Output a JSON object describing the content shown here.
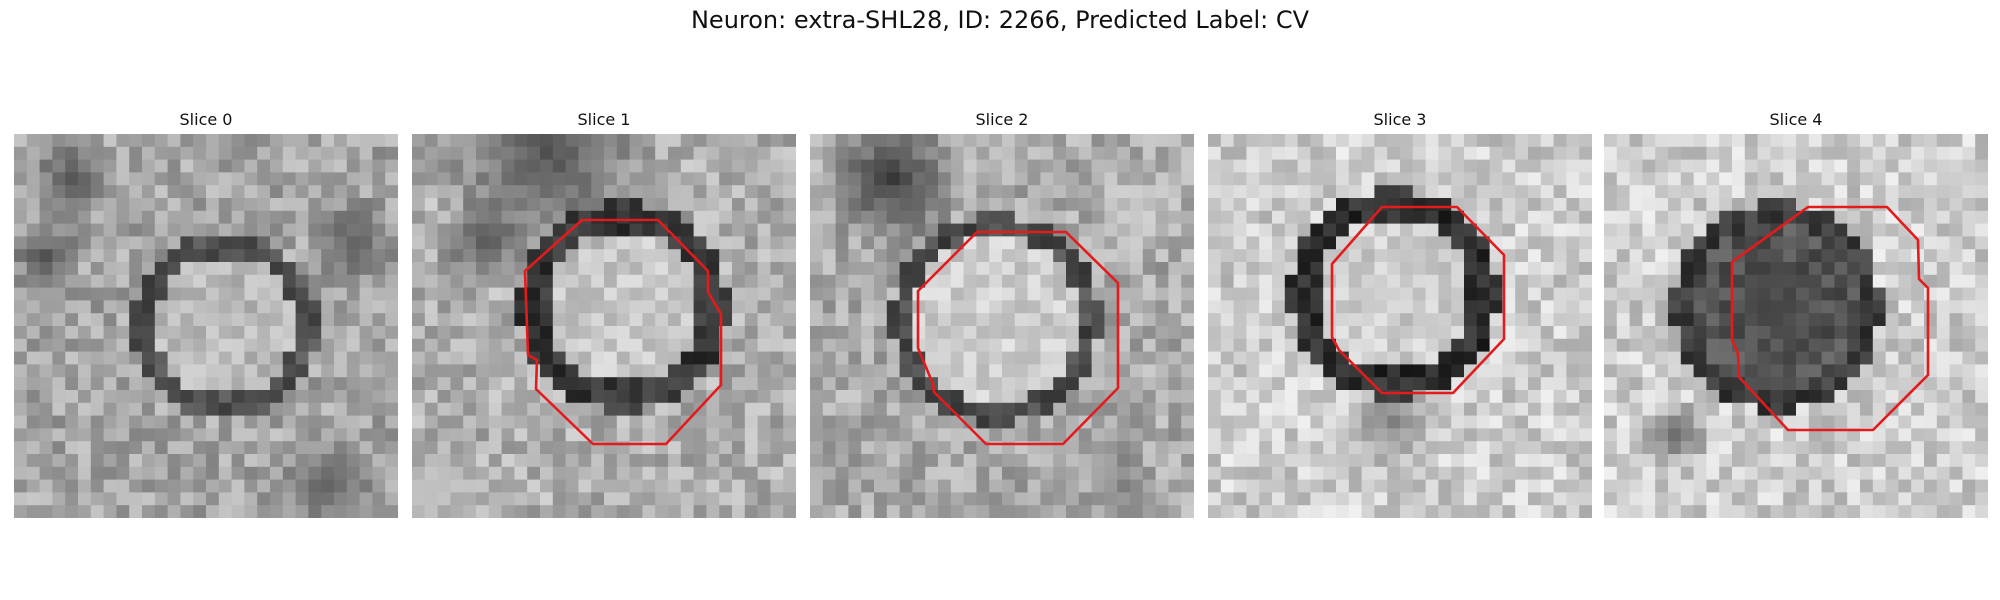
{
  "figure": {
    "title": "Neuron: extra-SHL28, ID: 2266, Predicted Label: CV"
  },
  "panels": [
    {
      "title": "Slice 0",
      "has_contour": false
    },
    {
      "title": "Slice 1",
      "has_contour": true
    },
    {
      "title": "Slice 2",
      "has_contour": true
    },
    {
      "title": "Slice 3",
      "has_contour": true
    },
    {
      "title": "Slice 4",
      "has_contour": true
    }
  ],
  "style": {
    "contour_color": "#e41a1c",
    "colormap": "grayscale"
  }
}
